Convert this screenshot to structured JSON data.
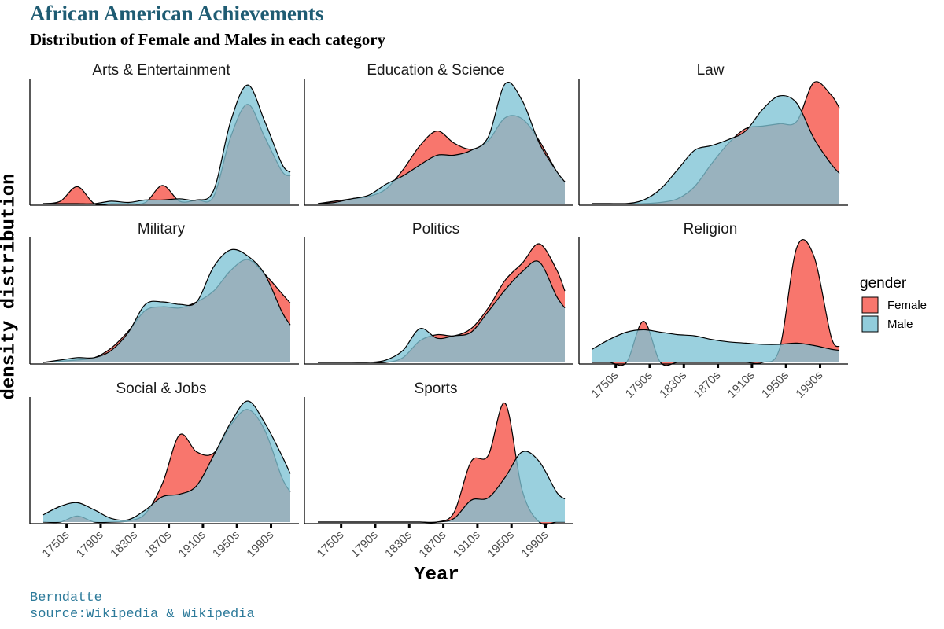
{
  "title": "African American Achievements",
  "subtitle": "Distribution of Female and Males in each category",
  "caption": [
    "Berndatte",
    "source:Wikipedia & Wikipedia"
  ],
  "chart_data": {
    "type": "area",
    "xlabel": "Year",
    "ylabel": "density distribution",
    "x_ticks": [
      "1750s",
      "1790s",
      "1830s",
      "1870s",
      "1910s",
      "1950s",
      "1990s"
    ],
    "x": [
      1730,
      1750,
      1770,
      1790,
      1810,
      1830,
      1850,
      1870,
      1890,
      1910,
      1930,
      1950,
      1970,
      1990,
      2010,
      2020
    ],
    "legend": {
      "title": "gender",
      "position": "right",
      "entries": [
        {
          "label": "Female",
          "color": "#F8766D"
        },
        {
          "label": "Male",
          "color": "#7EC3D5"
        }
      ]
    },
    "colors": {
      "female": "#F8766D",
      "male": "#7EC3D5",
      "overlap": "#8fa6ad"
    },
    "facets": [
      {
        "name": "Arts & Entertainment",
        "female": [
          0.0,
          0.02,
          0.14,
          0.0,
          0.0,
          0.0,
          0.01,
          0.15,
          0.02,
          0.03,
          0.06,
          0.55,
          0.82,
          0.55,
          0.27,
          0.23
        ],
        "male": [
          0.0,
          0.0,
          0.0,
          0.0,
          0.02,
          0.01,
          0.03,
          0.03,
          0.04,
          0.03,
          0.11,
          0.68,
          0.98,
          0.68,
          0.33,
          0.26
        ]
      },
      {
        "name": "Education & Science",
        "female": [
          0.0,
          0.02,
          0.04,
          0.06,
          0.12,
          0.28,
          0.48,
          0.6,
          0.5,
          0.45,
          0.52,
          0.71,
          0.7,
          0.52,
          0.27,
          0.18
        ],
        "male": [
          0.0,
          0.01,
          0.04,
          0.07,
          0.16,
          0.23,
          0.32,
          0.4,
          0.4,
          0.44,
          0.55,
          0.99,
          0.85,
          0.5,
          0.27,
          0.18
        ]
      },
      {
        "name": "Law",
        "female": [
          0.0,
          0.0,
          0.0,
          0.0,
          0.01,
          0.04,
          0.14,
          0.33,
          0.5,
          0.62,
          0.64,
          0.66,
          0.68,
          1.0,
          0.9,
          0.79
        ],
        "male": [
          0.0,
          0.0,
          0.0,
          0.03,
          0.12,
          0.28,
          0.44,
          0.48,
          0.53,
          0.6,
          0.78,
          0.89,
          0.83,
          0.54,
          0.33,
          0.25
        ]
      },
      {
        "name": "Military",
        "female": [
          0.0,
          0.01,
          0.02,
          0.04,
          0.12,
          0.26,
          0.43,
          0.46,
          0.45,
          0.5,
          0.59,
          0.76,
          0.85,
          0.73,
          0.57,
          0.49
        ],
        "male": [
          0.0,
          0.02,
          0.04,
          0.04,
          0.1,
          0.25,
          0.48,
          0.5,
          0.48,
          0.5,
          0.79,
          0.93,
          0.88,
          0.73,
          0.42,
          0.31
        ]
      },
      {
        "name": "Politics",
        "female": [
          0.0,
          0.0,
          0.0,
          0.0,
          0.0,
          0.04,
          0.18,
          0.23,
          0.22,
          0.28,
          0.45,
          0.68,
          0.82,
          0.98,
          0.77,
          0.59
        ],
        "male": [
          0.0,
          0.0,
          0.0,
          0.0,
          0.02,
          0.1,
          0.28,
          0.2,
          0.22,
          0.25,
          0.42,
          0.6,
          0.75,
          0.83,
          0.55,
          0.45
        ]
      },
      {
        "name": "Religion",
        "female": [
          0.0,
          0.0,
          0.0,
          0.34,
          0.0,
          0.0,
          0.0,
          0.0,
          0.0,
          0.0,
          0.0,
          0.12,
          0.95,
          0.88,
          0.22,
          0.13
        ],
        "male": [
          0.11,
          0.19,
          0.25,
          0.27,
          0.25,
          0.23,
          0.22,
          0.19,
          0.17,
          0.16,
          0.15,
          0.15,
          0.16,
          0.14,
          0.11,
          0.1
        ]
      },
      {
        "name": "Social & Jobs",
        "female": [
          0.0,
          0.0,
          0.05,
          0.0,
          0.0,
          0.01,
          0.07,
          0.32,
          0.72,
          0.58,
          0.57,
          0.8,
          0.93,
          0.76,
          0.37,
          0.25
        ],
        "male": [
          0.06,
          0.13,
          0.16,
          0.1,
          0.03,
          0.02,
          0.1,
          0.21,
          0.23,
          0.3,
          0.55,
          0.82,
          1.0,
          0.82,
          0.55,
          0.4
        ]
      },
      {
        "name": "Sports",
        "female": [
          0.0,
          0.0,
          0.0,
          0.0,
          0.0,
          0.0,
          0.0,
          0.0,
          0.08,
          0.5,
          0.55,
          0.98,
          0.26,
          0.0,
          0.0,
          0.0
        ],
        "male": [
          0.0,
          0.0,
          0.0,
          0.0,
          0.0,
          0.0,
          0.0,
          0.0,
          0.03,
          0.18,
          0.2,
          0.37,
          0.58,
          0.5,
          0.25,
          0.19
        ]
      }
    ]
  }
}
